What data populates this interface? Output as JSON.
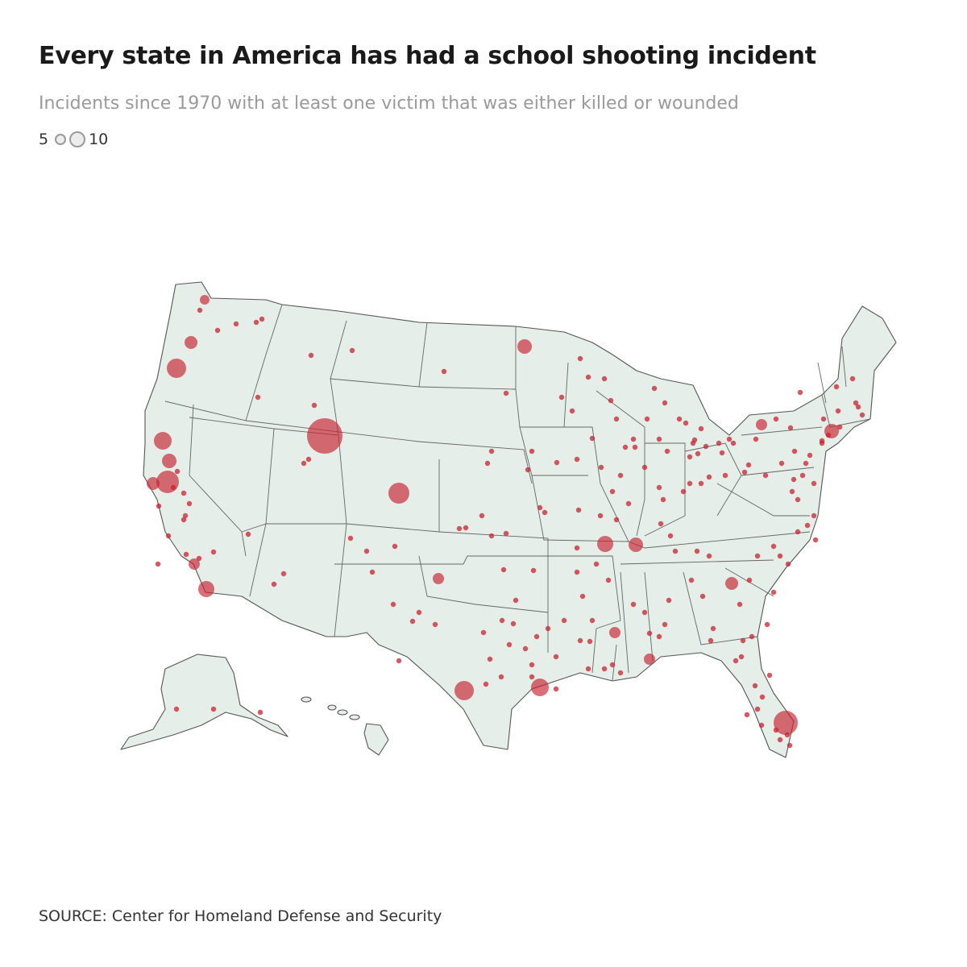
{
  "header": {
    "title": "Every state in America has had a school shooting incident",
    "subtitle": "Incidents since 1970 with at least one victim that was either killed or wounded"
  },
  "legend": {
    "min_label": "5",
    "max_label": "10"
  },
  "footer": {
    "source": "SOURCE: Center for Homeland Defense and Security"
  },
  "colors": {
    "land": "#e6eeea",
    "border": "#555555",
    "marker": "#c8202c"
  },
  "map_data": {
    "type": "proportional-symbol-map",
    "region": "United States",
    "marker_sizes": [
      {
        "label": "5",
        "victims": 5
      },
      {
        "label": "10",
        "victims": 10
      }
    ]
  }
}
